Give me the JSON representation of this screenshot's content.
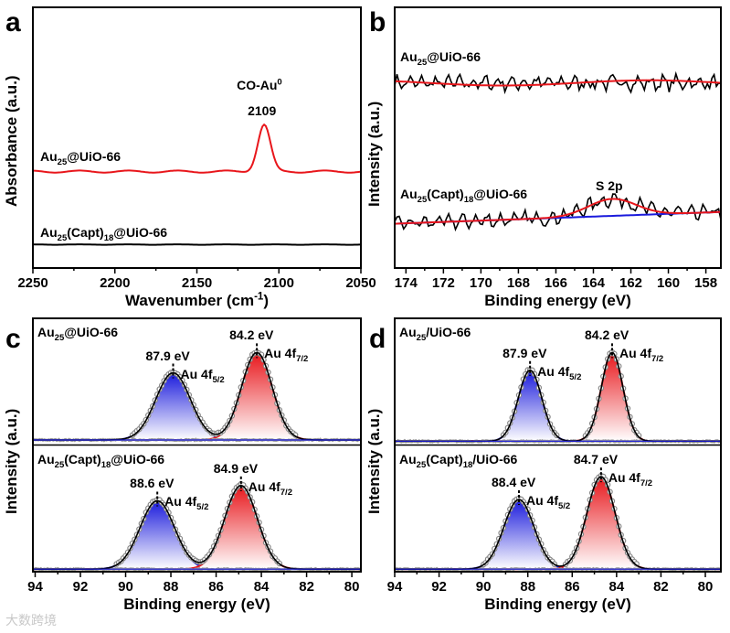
{
  "watermark": "大数跨境",
  "colors": {
    "red": "#e8161b",
    "blue": "#1a1adc",
    "black": "#000000",
    "gray": "#8a8a8a"
  },
  "chart_data": [
    {
      "id": "a",
      "panel_label": "a",
      "type": "line",
      "xlabel_parts": [
        [
          "Wavenumber (cm",
          ""
        ],
        [
          "-1",
          "sup"
        ],
        [
          ")",
          ""
        ]
      ],
      "ylabel": "Absorbance (a.u.)",
      "xlim": [
        2250,
        2050
      ],
      "ylim": [
        0,
        1
      ],
      "xticks": [
        2250,
        2200,
        2150,
        2100,
        2050
      ],
      "minor_step": 25,
      "series": [
        {
          "name": "Au25@UiO-66",
          "label_parts": [
            [
              "Au",
              ""
            ],
            [
              "25",
              "sub"
            ],
            [
              "@UiO-66",
              ""
            ]
          ],
          "color": "#e8161b",
          "baseline": 0.37,
          "noise": 0.004,
          "peaks": [
            {
              "center": 2109,
              "fwhm": 9,
              "height": 0.18
            }
          ]
        },
        {
          "name": "Au25(Capt)18@UiO-66",
          "label_parts": [
            [
              "Au",
              ""
            ],
            [
              "25",
              "sub"
            ],
            [
              "(Capt)",
              ""
            ],
            [
              "18",
              "sub"
            ],
            [
              "@UiO-66",
              ""
            ]
          ],
          "color": "#000000",
          "baseline": 0.09,
          "noise": 0.0008,
          "peaks": []
        }
      ],
      "annotations": [
        {
          "name": "co-au-label",
          "parts": [
            [
              "CO-Au",
              ""
            ],
            [
              "0",
              "sup"
            ]
          ],
          "x": 2109
        },
        {
          "name": "peak-2109-label",
          "parts": [
            [
              "2109",
              ""
            ]
          ],
          "x": 2109
        }
      ]
    },
    {
      "id": "b",
      "panel_label": "b",
      "type": "line",
      "xlabel_parts": [
        [
          "Binding energy (eV)",
          ""
        ]
      ],
      "ylabel": "Intensity (a.u.)",
      "xlim": [
        174.6,
        157.2
      ],
      "ylim": [
        0,
        1
      ],
      "xticks": [
        174,
        172,
        170,
        168,
        166,
        164,
        162,
        160,
        158
      ],
      "minor_step": 1,
      "series": [
        {
          "name": "Au25@UiO-66",
          "label_parts": [
            [
              "Au",
              ""
            ],
            [
              "25",
              "sub"
            ],
            [
              "@UiO-66",
              ""
            ]
          ],
          "data_color": "#000000",
          "fit_color": "#e8161b",
          "baseline": 0.71,
          "baseline_slope": 0.0,
          "noise": 0.03,
          "peaks": []
        },
        {
          "name": "Au25(Capt)18@UiO-66",
          "label_parts": [
            [
              "Au",
              ""
            ],
            [
              "25",
              "sub"
            ],
            [
              "(Capt)",
              ""
            ],
            [
              "18",
              "sub"
            ],
            [
              "@UiO-66",
              ""
            ]
          ],
          "data_color": "#000000",
          "fit_color": "#e8161b",
          "bg_color": "#1a1adc",
          "baseline": 0.17,
          "baseline_end": 0.215,
          "noise": 0.03,
          "peaks": [
            {
              "center": 163.0,
              "fwhm": 3.0,
              "height": 0.065,
              "label": "S 2p"
            }
          ]
        }
      ]
    },
    {
      "id": "c",
      "panel_label": "c",
      "type": "line",
      "xlabel_parts": [
        [
          "Binding energy (eV)",
          ""
        ]
      ],
      "ylabel": "Intensity (a.u.)",
      "xlim": [
        94.1,
        79.6
      ],
      "ylim": [
        0,
        1
      ],
      "xticks": [
        94,
        92,
        90,
        88,
        86,
        84,
        82,
        80
      ],
      "minor_step": 1,
      "subplots": [
        {
          "name": "Au25@UiO-66",
          "label_parts": [
            [
              "Au",
              ""
            ],
            [
              "25",
              "sub"
            ],
            [
              "@UiO-66",
              ""
            ]
          ],
          "baseline": 0.04,
          "peaks": [
            {
              "center": 87.9,
              "fwhm": 1.8,
              "height": 0.53,
              "color": "blue",
              "label": "87.9 eV",
              "name_parts": [
                [
                  "Au 4f",
                  ""
                ],
                [
                  "5/2",
                  "sub"
                ]
              ]
            },
            {
              "center": 84.2,
              "fwhm": 1.6,
              "height": 0.69,
              "color": "red",
              "label": "84.2 eV",
              "name_parts": [
                [
                  "Au 4f",
                  ""
                ],
                [
                  "7/2",
                  "sub"
                ]
              ]
            }
          ]
        },
        {
          "name": "Au25(Capt)18@UiO-66",
          "label_parts": [
            [
              "Au",
              ""
            ],
            [
              "25",
              "sub"
            ],
            [
              "(Capt)",
              ""
            ],
            [
              "18",
              "sub"
            ],
            [
              "@UiO-66",
              ""
            ]
          ],
          "baseline": 0.02,
          "peaks": [
            {
              "center": 88.6,
              "fwhm": 1.8,
              "height": 0.54,
              "color": "blue",
              "label": "88.6 eV",
              "name_parts": [
                [
                  "Au 4f",
                  ""
                ],
                [
                  "5/2",
                  "sub"
                ]
              ]
            },
            {
              "center": 84.9,
              "fwhm": 1.7,
              "height": 0.66,
              "color": "red",
              "label": "84.9 eV",
              "name_parts": [
                [
                  "Au 4f",
                  ""
                ],
                [
                  "7/2",
                  "sub"
                ]
              ]
            }
          ]
        }
      ]
    },
    {
      "id": "d",
      "panel_label": "d",
      "type": "line",
      "xlabel_parts": [
        [
          "Binding energy (eV)",
          ""
        ]
      ],
      "ylabel": "Intensity (a.u.)",
      "xlim": [
        94.0,
        79.3
      ],
      "ylim": [
        0,
        1
      ],
      "xticks": [
        94,
        92,
        90,
        88,
        86,
        84,
        82,
        80
      ],
      "minor_step": 1,
      "subplots": [
        {
          "name": "Au25/UiO-66",
          "label_parts": [
            [
              "Au",
              ""
            ],
            [
              "25",
              "sub"
            ],
            [
              "/UiO-66",
              ""
            ]
          ],
          "baseline": 0.03,
          "peaks": [
            {
              "center": 87.9,
              "fwhm": 1.25,
              "height": 0.56,
              "color": "blue",
              "label": "87.9 eV",
              "name_parts": [
                [
                  "Au 4f",
                  ""
                ],
                [
                  "5/2",
                  "sub"
                ]
              ]
            },
            {
              "center": 84.2,
              "fwhm": 1.15,
              "height": 0.7,
              "color": "red",
              "label": "84.2 eV",
              "name_parts": [
                [
                  "Au 4f",
                  ""
                ],
                [
                  "7/2",
                  "sub"
                ]
              ]
            }
          ]
        },
        {
          "name": "Au25(Capt)18/UiO-66",
          "label_parts": [
            [
              "Au",
              ""
            ],
            [
              "25",
              "sub"
            ],
            [
              "(Capt)",
              ""
            ],
            [
              "18",
              "sub"
            ],
            [
              "/UiO-66",
              ""
            ]
          ],
          "baseline": 0.02,
          "peaks": [
            {
              "center": 88.4,
              "fwhm": 1.6,
              "height": 0.55,
              "color": "blue",
              "label": "88.4 eV",
              "name_parts": [
                [
                  "Au 4f",
                  ""
                ],
                [
                  "5/2",
                  "sub"
                ]
              ]
            },
            {
              "center": 84.7,
              "fwhm": 1.5,
              "height": 0.73,
              "color": "red",
              "label": "84.7 eV",
              "name_parts": [
                [
                  "Au 4f",
                  ""
                ],
                [
                  "7/2",
                  "sub"
                ]
              ]
            }
          ]
        }
      ]
    }
  ]
}
